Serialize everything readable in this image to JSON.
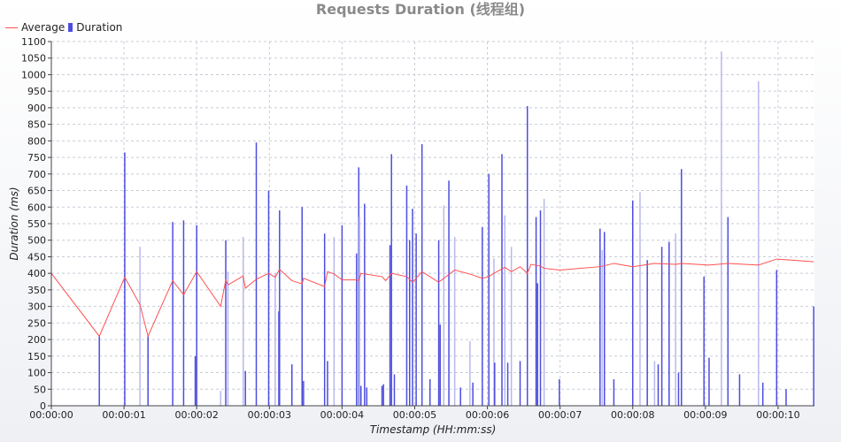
{
  "chart_data": {
    "type": "bar",
    "title": "Requests Duration (线程组)",
    "xlabel": "Timestamp (HH:mm:ss)",
    "ylabel": "Duration (ms)",
    "ylim": [
      0,
      1100
    ],
    "xlim": [
      0,
      10.5
    ],
    "x_tick_labels": [
      "00:00:00",
      "00:00:01",
      "00:00:02",
      "00:00:03",
      "00:00:04",
      "00:00:05",
      "00:00:06",
      "00:00:07",
      "00:00:08",
      "00:00:09",
      "00:00:10"
    ],
    "y_ticks": [
      0,
      50,
      100,
      150,
      200,
      250,
      300,
      350,
      400,
      450,
      500,
      550,
      600,
      650,
      700,
      750,
      800,
      850,
      900,
      950,
      1000,
      1050,
      1100
    ],
    "legend": [
      "Average",
      "Duration"
    ],
    "legend_position": "top-left",
    "grid": true,
    "colors": {
      "average": "#ff4f4f",
      "duration": "#4d4de0",
      "duration_light": "#b8b8ee"
    },
    "series": [
      {
        "name": "Duration",
        "type": "bar",
        "x": [
          0.66,
          1.01,
          1.22,
          1.33,
          1.67,
          1.82,
          1.98,
          2.0,
          2.33,
          2.4,
          2.43,
          2.64,
          2.67,
          2.82,
          2.99,
          3.08,
          3.13,
          3.14,
          3.31,
          3.45,
          3.47,
          3.76,
          3.8,
          3.89,
          4.0,
          4.2,
          4.23,
          4.24,
          4.26,
          4.31,
          4.34,
          4.55,
          4.57,
          4.66,
          4.68,
          4.72,
          4.89,
          4.93,
          4.97,
          5.02,
          5.1,
          5.21,
          5.33,
          5.35,
          5.4,
          5.47,
          5.55,
          5.63,
          5.76,
          5.8,
          5.93,
          6.02,
          6.09,
          6.1,
          6.2,
          6.24,
          6.28,
          6.33,
          6.45,
          6.55,
          6.67,
          6.69,
          6.73,
          6.78,
          6.99,
          7.55,
          7.58,
          7.61,
          7.74,
          8.0,
          8.1,
          8.2,
          8.3,
          8.35,
          8.4,
          8.5,
          8.59,
          8.63,
          8.67,
          8.98,
          9.05,
          9.22,
          9.31,
          9.47,
          9.73,
          9.79,
          9.98,
          10.11,
          10.49
        ],
        "values": [
          210,
          765,
          480,
          210,
          555,
          560,
          150,
          545,
          45,
          500,
          405,
          510,
          105,
          795,
          650,
          400,
          285,
          590,
          125,
          600,
          75,
          520,
          135,
          510,
          545,
          460,
          720,
          570,
          60,
          610,
          55,
          60,
          65,
          485,
          760,
          95,
          665,
          500,
          595,
          520,
          790,
          80,
          500,
          245,
          605,
          680,
          510,
          55,
          195,
          70,
          540,
          700,
          445,
          130,
          760,
          575,
          130,
          480,
          135,
          905,
          570,
          370,
          590,
          625,
          80,
          535,
          470,
          525,
          80,
          620,
          645,
          440,
          135,
          125,
          480,
          495,
          520,
          100,
          715,
          390,
          145,
          1070,
          570,
          95,
          980,
          70,
          410,
          50,
          300
        ],
        "light": [
          0,
          0,
          1,
          0,
          0,
          0,
          0,
          0,
          1,
          0,
          1,
          1,
          0,
          0,
          0,
          1,
          0,
          0,
          0,
          0,
          0,
          0,
          0,
          1,
          0,
          0,
          0,
          1,
          0,
          0,
          0,
          0,
          0,
          0,
          0,
          0,
          0,
          0,
          0,
          0,
          0,
          0,
          0,
          0,
          1,
          0,
          1,
          0,
          1,
          0,
          0,
          0,
          1,
          0,
          0,
          1,
          0,
          1,
          0,
          0,
          0,
          0,
          0,
          1,
          0,
          0,
          1,
          0,
          0,
          0,
          1,
          0,
          1,
          0,
          0,
          0,
          1,
          0,
          0,
          0,
          0,
          1,
          0,
          0,
          1,
          0,
          0,
          0,
          0
        ]
      },
      {
        "name": "Average",
        "type": "line",
        "x": [
          0.0,
          0.66,
          1.01,
          1.22,
          1.33,
          1.67,
          1.82,
          2.0,
          2.33,
          2.4,
          2.43,
          2.64,
          2.67,
          2.82,
          2.99,
          3.08,
          3.14,
          3.31,
          3.45,
          3.47,
          3.76,
          3.8,
          3.89,
          4.0,
          4.2,
          4.23,
          4.26,
          4.31,
          4.55,
          4.6,
          4.68,
          4.89,
          4.97,
          5.1,
          5.33,
          5.55,
          5.8,
          5.93,
          6.02,
          6.09,
          6.24,
          6.33,
          6.45,
          6.55,
          6.6,
          6.67,
          6.73,
          6.78,
          7.0,
          7.55,
          7.74,
          8.0,
          8.3,
          8.59,
          8.67,
          9.05,
          9.31,
          9.73,
          9.98,
          10.49
        ],
        "values": [
          400,
          210,
          388,
          305,
          210,
          378,
          335,
          405,
          300,
          380,
          365,
          392,
          355,
          382,
          400,
          388,
          412,
          378,
          368,
          385,
          360,
          405,
          398,
          380,
          380,
          378,
          400,
          398,
          390,
          378,
          400,
          390,
          373,
          405,
          373,
          410,
          395,
          385,
          390,
          400,
          418,
          405,
          420,
          400,
          427,
          424,
          422,
          415,
          410,
          420,
          430,
          420,
          430,
          427,
          430,
          425,
          430,
          425,
          443,
          435
        ]
      }
    ]
  }
}
